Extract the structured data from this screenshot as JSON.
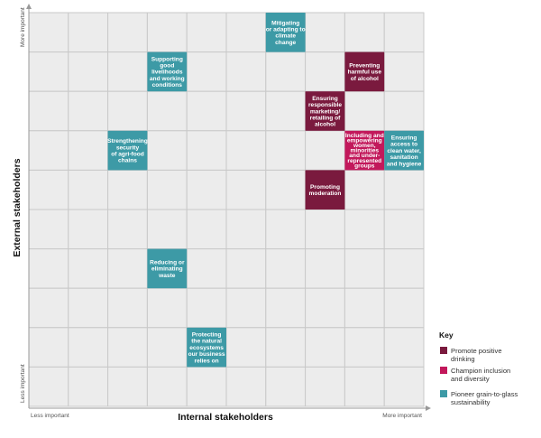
{
  "axes": {
    "x_title": "Internal stakeholders",
    "y_title": "External stakeholders",
    "x_low": "Less important",
    "x_high": "More important",
    "y_low": "Less important",
    "y_high": "More important"
  },
  "grid": {
    "cols": 10,
    "rows": 10
  },
  "colors": {
    "promote": "#7a1a3e",
    "inclusion": "#c2185b",
    "sustainability": "#3d9aa6",
    "grid_cell": "#ececec",
    "grid_line": "#c9c9c9"
  },
  "tiles": [
    {
      "id": "mitigating",
      "category": "sustainability",
      "col": 6,
      "row": 0,
      "lines": [
        "Mitigating",
        "or adapting to",
        "climate",
        "change"
      ]
    },
    {
      "id": "livelihoods",
      "category": "sustainability",
      "col": 3,
      "row": 1,
      "lines": [
        "Supporting",
        "good",
        "livelihoods",
        "and working",
        "conditions"
      ]
    },
    {
      "id": "harmful-alcohol",
      "category": "promote",
      "col": 8,
      "row": 1,
      "lines": [
        "Preventing",
        "harmful use",
        "of alcohol"
      ]
    },
    {
      "id": "responsible-marketing",
      "category": "promote",
      "col": 7,
      "row": 2,
      "lines": [
        "Ensuring",
        "responsible",
        "marketing/",
        "retailing of",
        "alcohol"
      ]
    },
    {
      "id": "agri-food",
      "category": "sustainability",
      "col": 2,
      "row": 3,
      "lines": [
        "Strengthening",
        "security",
        "of agri-food",
        "chains"
      ]
    },
    {
      "id": "inclusion",
      "category": "inclusion",
      "col": 8,
      "row": 3,
      "lines": [
        "Including and",
        "empowering",
        "women,",
        "minorities",
        "and under-",
        "represented",
        "groups"
      ]
    },
    {
      "id": "clean-water",
      "category": "sustainability",
      "col": 9,
      "row": 3,
      "lines": [
        "Ensuring",
        "access to",
        "clean water,",
        "sanitation",
        "and hygiene"
      ]
    },
    {
      "id": "moderation",
      "category": "promote",
      "col": 7,
      "row": 4,
      "lines": [
        "Promoting",
        "moderation"
      ]
    },
    {
      "id": "waste",
      "category": "sustainability",
      "col": 3,
      "row": 6,
      "lines": [
        "Reducing or",
        "eliminating",
        "waste"
      ]
    },
    {
      "id": "ecosystems",
      "category": "sustainability",
      "col": 4,
      "row": 8,
      "lines": [
        "Protecting",
        "the natural",
        "ecosystems",
        "our business",
        "relies on"
      ]
    }
  ],
  "key": {
    "title": "Key",
    "items": [
      {
        "category": "promote",
        "lines": [
          "Promote positive",
          "drinking"
        ]
      },
      {
        "category": "inclusion",
        "lines": [
          "Champion inclusion",
          "and diversity"
        ]
      },
      {
        "category": "sustainability",
        "lines": [
          "Pioneer grain-to-glass",
          "sustainability"
        ]
      }
    ]
  }
}
